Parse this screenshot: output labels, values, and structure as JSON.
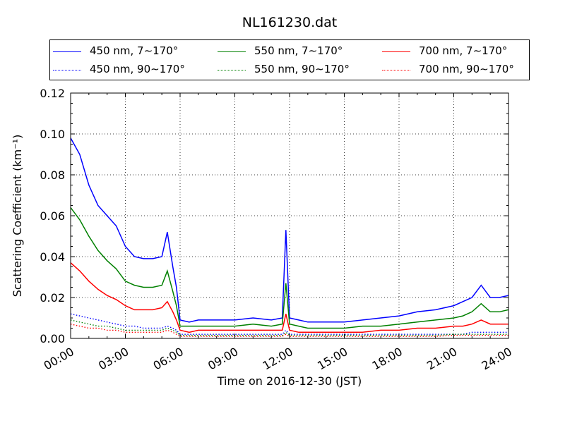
{
  "chart_data": {
    "type": "line",
    "title": "NL161230.dat",
    "xlabel": "Time on 2016-12-30 (JST)",
    "ylabel": "Scattering Coefficient (km⁻¹)",
    "x_ticks": [
      "00:00",
      "03:00",
      "06:00",
      "09:00",
      "12:00",
      "15:00",
      "18:00",
      "21:00",
      "24:00"
    ],
    "y_ticks": [
      "0.00",
      "0.02",
      "0.04",
      "0.06",
      "0.08",
      "0.10",
      "0.12"
    ],
    "xlim": [
      0,
      24
    ],
    "ylim": [
      0,
      0.12
    ],
    "x_unit": "hours",
    "grid": true,
    "legend_position": "top (outside plot), 3 columns",
    "x": [
      0,
      0.5,
      1,
      1.5,
      2,
      2.5,
      3,
      3.5,
      4,
      4.5,
      5,
      5.3,
      5.6,
      5.8,
      6,
      6.5,
      7,
      8,
      9,
      10,
      11,
      11.6,
      11.8,
      12,
      12.5,
      13,
      14,
      15,
      16,
      17,
      18,
      19,
      20,
      21,
      21.5,
      22,
      22.5,
      23,
      23.5,
      24
    ],
    "series": [
      {
        "name": "450 nm, 7∼170°",
        "color": "#0000ff",
        "style": "solid",
        "values": [
          0.098,
          0.09,
          0.075,
          0.065,
          0.06,
          0.055,
          0.045,
          0.04,
          0.039,
          0.039,
          0.04,
          0.052,
          0.035,
          0.025,
          0.009,
          0.008,
          0.009,
          0.009,
          0.009,
          0.01,
          0.009,
          0.01,
          0.053,
          0.01,
          0.009,
          0.008,
          0.008,
          0.008,
          0.009,
          0.01,
          0.011,
          0.013,
          0.014,
          0.016,
          0.018,
          0.02,
          0.026,
          0.02,
          0.02,
          0.021
        ]
      },
      {
        "name": "550 nm, 7∼170°",
        "color": "#008000",
        "style": "solid",
        "values": [
          0.064,
          0.058,
          0.05,
          0.043,
          0.038,
          0.034,
          0.028,
          0.026,
          0.025,
          0.025,
          0.026,
          0.033,
          0.023,
          0.016,
          0.006,
          0.006,
          0.006,
          0.006,
          0.006,
          0.007,
          0.006,
          0.007,
          0.027,
          0.007,
          0.006,
          0.005,
          0.005,
          0.005,
          0.006,
          0.006,
          0.007,
          0.008,
          0.009,
          0.01,
          0.011,
          0.013,
          0.017,
          0.013,
          0.013,
          0.014
        ]
      },
      {
        "name": "700 nm, 7∼170°",
        "color": "#ff0000",
        "style": "solid",
        "values": [
          0.037,
          0.033,
          0.028,
          0.024,
          0.021,
          0.019,
          0.016,
          0.014,
          0.014,
          0.014,
          0.015,
          0.018,
          0.013,
          0.009,
          0.004,
          0.003,
          0.004,
          0.004,
          0.004,
          0.004,
          0.004,
          0.004,
          0.012,
          0.004,
          0.003,
          0.003,
          0.003,
          0.003,
          0.003,
          0.004,
          0.004,
          0.005,
          0.005,
          0.006,
          0.006,
          0.007,
          0.009,
          0.007,
          0.007,
          0.007
        ]
      },
      {
        "name": "450 nm, 90∼170°",
        "color": "#0000ff",
        "style": "dotted",
        "values": [
          0.012,
          0.011,
          0.01,
          0.009,
          0.008,
          0.007,
          0.006,
          0.006,
          0.005,
          0.005,
          0.005,
          0.006,
          0.005,
          0.004,
          0.002,
          0.002,
          0.002,
          0.002,
          0.002,
          0.002,
          0.002,
          0.002,
          0.004,
          0.002,
          0.002,
          0.002,
          0.002,
          0.002,
          0.002,
          0.002,
          0.002,
          0.002,
          0.002,
          0.002,
          0.002,
          0.003,
          0.003,
          0.003,
          0.003,
          0.003
        ]
      },
      {
        "name": "550 nm, 90∼170°",
        "color": "#008000",
        "style": "dotted",
        "values": [
          0.009,
          0.008,
          0.007,
          0.006,
          0.006,
          0.005,
          0.004,
          0.004,
          0.004,
          0.004,
          0.004,
          0.005,
          0.004,
          0.003,
          0.0015,
          0.0015,
          0.0015,
          0.0015,
          0.0015,
          0.0015,
          0.0015,
          0.0015,
          0.003,
          0.0015,
          0.0015,
          0.0015,
          0.0015,
          0.0015,
          0.0015,
          0.0015,
          0.0015,
          0.0015,
          0.0015,
          0.002,
          0.002,
          0.002,
          0.002,
          0.002,
          0.002,
          0.002
        ]
      },
      {
        "name": "700 nm, 90∼170°",
        "color": "#ff0000",
        "style": "dotted",
        "values": [
          0.007,
          0.006,
          0.005,
          0.005,
          0.004,
          0.004,
          0.003,
          0.003,
          0.003,
          0.003,
          0.003,
          0.004,
          0.003,
          0.002,
          0.001,
          0.001,
          0.001,
          0.001,
          0.001,
          0.001,
          0.001,
          0.001,
          0.002,
          0.001,
          0.001,
          0.001,
          0.001,
          0.001,
          0.001,
          0.001,
          0.001,
          0.001,
          0.001,
          0.0015,
          0.0015,
          0.0015,
          0.0015,
          0.0015,
          0.0015,
          0.0015
        ]
      }
    ]
  }
}
